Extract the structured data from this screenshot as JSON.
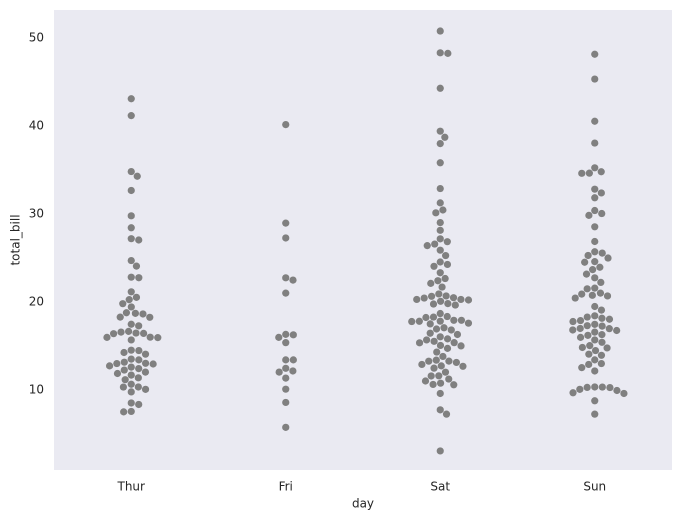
{
  "chart_data": {
    "type": "swarm",
    "xlabel": "day",
    "ylabel": "total_bill",
    "categories": [
      "Thur",
      "Fri",
      "Sat",
      "Sun"
    ],
    "color": "#808080",
    "background": "#eaeaf2",
    "grid": false,
    "ylim": [
      0.9,
      53.2
    ],
    "yticks": [
      10,
      20,
      30,
      40,
      50
    ],
    "values": [
      [
        43.11,
        41.19,
        34.83,
        34.3,
        32.68,
        29.8,
        28.44,
        27.2,
        27.05,
        24.71,
        24.08,
        22.82,
        22.76,
        21.16,
        20.53,
        20.27,
        19.81,
        19.44,
        18.78,
        18.71,
        18.64,
        18.28,
        18.26,
        17.47,
        17.29,
        16.66,
        16.58,
        16.47,
        16.43,
        16.4,
        16.0,
        15.98,
        15.95,
        15.69,
        14.52,
        14.48,
        14.26,
        14.07,
        13.51,
        13.42,
        13.16,
        13.0,
        13.03,
        12.95,
        12.74,
        12.6,
        12.43,
        12.26,
        12.03,
        11.87,
        11.69,
        11.38,
        11.17,
        10.65,
        10.34,
        10.33,
        10.07,
        9.78,
        8.52,
        8.35,
        7.56,
        7.51
      ],
      [
        40.17,
        28.97,
        27.28,
        22.75,
        22.49,
        21.01,
        16.32,
        16.27,
        15.98,
        15.38,
        13.42,
        13.42,
        12.46,
        12.16,
        12.03,
        11.35,
        10.09,
        8.58,
        5.75
      ],
      [
        50.81,
        48.33,
        48.27,
        44.3,
        39.42,
        38.73,
        38.01,
        35.83,
        32.9,
        31.27,
        30.46,
        30.14,
        29.03,
        28.15,
        27.18,
        26.86,
        26.59,
        26.41,
        25.89,
        25.28,
        24.55,
        24.27,
        24.06,
        23.33,
        22.67,
        22.42,
        22.12,
        21.7,
        20.92,
        20.69,
        20.65,
        20.49,
        20.45,
        20.29,
        20.29,
        20.23,
        20.08,
        19.82,
        19.77,
        19.65,
        18.69,
        18.35,
        18.29,
        18.24,
        17.92,
        17.92,
        17.82,
        17.81,
        17.78,
        17.59,
        17.51,
        17.07,
        16.93,
        16.82,
        16.45,
        16.31,
        16.04,
        15.81,
        15.69,
        15.53,
        15.38,
        15.36,
        15.06,
        15.01,
        14.73,
        14.31,
        13.81,
        13.39,
        13.28,
        13.27,
        13.13,
        12.9,
        12.74,
        12.69,
        12.48,
        12.02,
        11.61,
        11.59,
        11.24,
        11.02,
        10.77,
        10.63,
        10.59,
        9.6,
        7.74,
        7.25,
        3.07
      ],
      [
        48.17,
        45.35,
        40.55,
        38.07,
        35.26,
        34.81,
        34.63,
        34.65,
        32.83,
        32.4,
        31.85,
        30.4,
        30.06,
        29.85,
        28.55,
        26.88,
        25.71,
        25.56,
        25.29,
        25.0,
        24.59,
        24.52,
        23.95,
        23.68,
        23.17,
        22.23,
        21.58,
        21.5,
        21.01,
        20.9,
        20.76,
        20.69,
        19.49,
        19.08,
        18.43,
        18.29,
        18.15,
        18.04,
        17.89,
        17.46,
        17.31,
        17.26,
        16.99,
        16.97,
        16.82,
        16.76,
        16.58,
        16.29,
        16.21,
        15.98,
        15.42,
        15.04,
        14.83,
        14.78,
        14.07,
        13.94,
        13.42,
        13.0,
        12.9,
        12.54,
        12.16,
        10.34,
        10.33,
        10.29,
        10.27,
        10.07,
        9.94,
        9.68,
        9.6,
        8.77,
        7.25,
        20.45,
        17.78,
        15.69,
        14.48,
        22.75
      ]
    ]
  }
}
